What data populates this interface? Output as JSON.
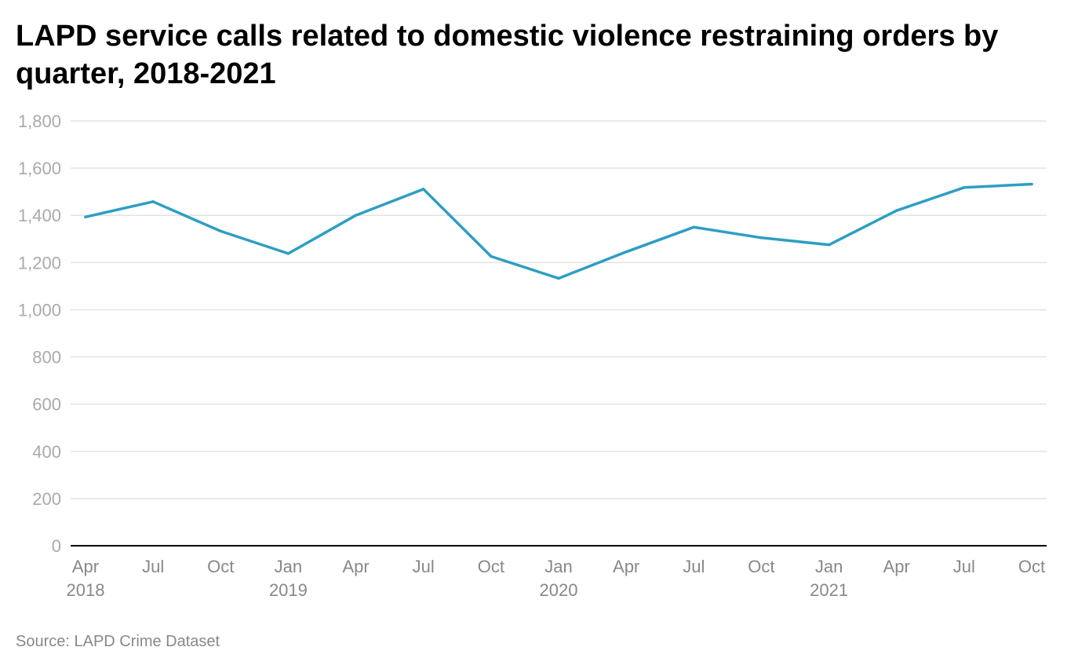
{
  "chart_data": {
    "type": "line",
    "title": "LAPD service calls related to domestic violence restraining orders by quarter, 2018-2021",
    "xlabel": "",
    "ylabel": "",
    "ylim": [
      0,
      1800
    ],
    "yticks": [
      0,
      200,
      400,
      600,
      800,
      1000,
      1200,
      1400,
      1600,
      1800
    ],
    "ytick_labels": [
      "0",
      "200",
      "400",
      "600",
      "800",
      "1,000",
      "1,200",
      "1,400",
      "1,600",
      "1,800"
    ],
    "x": [
      "2018-04",
      "2018-07",
      "2018-10",
      "2019-01",
      "2019-04",
      "2019-07",
      "2019-10",
      "2020-01",
      "2020-04",
      "2020-07",
      "2020-10",
      "2021-01",
      "2021-04",
      "2021-07",
      "2021-10"
    ],
    "xtick_labels": [
      {
        "month": "Apr",
        "year": "2018"
      },
      {
        "month": "Jul",
        "year": ""
      },
      {
        "month": "Oct",
        "year": ""
      },
      {
        "month": "Jan",
        "year": "2019"
      },
      {
        "month": "Apr",
        "year": ""
      },
      {
        "month": "Jul",
        "year": ""
      },
      {
        "month": "Oct",
        "year": ""
      },
      {
        "month": "Jan",
        "year": "2020"
      },
      {
        "month": "Apr",
        "year": ""
      },
      {
        "month": "Jul",
        "year": ""
      },
      {
        "month": "Oct",
        "year": ""
      },
      {
        "month": "Jan",
        "year": "2021"
      },
      {
        "month": "Apr",
        "year": ""
      },
      {
        "month": "Jul",
        "year": ""
      },
      {
        "month": "Oct",
        "year": ""
      }
    ],
    "series": [
      {
        "values": [
          1393,
          1458,
          1333,
          1238,
          1400,
          1511,
          1226,
          1133,
          1245,
          1350,
          1305,
          1275,
          1420,
          1518,
          1532
        ],
        "color": "#2e9ec4"
      }
    ],
    "grid": true,
    "gridline_color": "#e3e3e3",
    "axis_color": "#000000",
    "source": "Source: LAPD Crime Dataset"
  }
}
